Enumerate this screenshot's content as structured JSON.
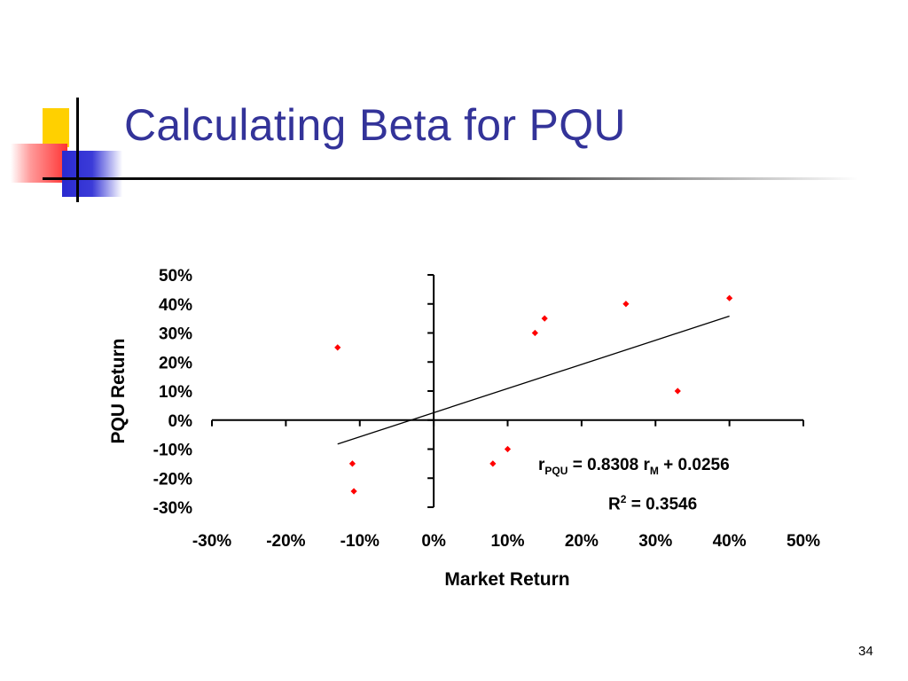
{
  "slide": {
    "title": "Calculating Beta for PQU",
    "page_number": "34"
  },
  "colors": {
    "title": "#333399",
    "points": "#ff0000",
    "deco_yellow": "#ffd000",
    "deco_red": "#ff3333",
    "deco_blue": "#2a2ad0"
  },
  "chart_data": {
    "type": "scatter",
    "xlabel": "Market Return",
    "ylabel": "PQU Return",
    "xlim": [
      -0.3,
      0.5
    ],
    "ylim": [
      -0.3,
      0.5
    ],
    "x_ticks": [
      -0.3,
      -0.2,
      -0.1,
      0,
      0.1,
      0.2,
      0.3,
      0.4,
      0.5
    ],
    "y_ticks": [
      0.5,
      0.4,
      0.3,
      0.2,
      0.1,
      0,
      -0.1,
      -0.2,
      -0.3
    ],
    "x_tick_labels": [
      "-30%",
      "-20%",
      "-10%",
      "0%",
      "10%",
      "20%",
      "30%",
      "40%",
      "50%"
    ],
    "y_tick_labels": [
      "50%",
      "40%",
      "30%",
      "20%",
      "10%",
      "0%",
      "-10%",
      "-20%",
      "-30%"
    ],
    "points": [
      {
        "x": -0.13,
        "y": 0.25
      },
      {
        "x": -0.11,
        "y": -0.15
      },
      {
        "x": -0.108,
        "y": -0.245
      },
      {
        "x": 0.08,
        "y": -0.15
      },
      {
        "x": 0.1,
        "y": -0.1
      },
      {
        "x": 0.137,
        "y": 0.3
      },
      {
        "x": 0.15,
        "y": 0.35
      },
      {
        "x": 0.26,
        "y": 0.4
      },
      {
        "x": 0.33,
        "y": 0.1
      },
      {
        "x": 0.4,
        "y": 0.42
      }
    ],
    "trendline": {
      "slope": 0.8308,
      "intercept": 0.0256,
      "x_range": [
        -0.13,
        0.4
      ]
    },
    "annotations": {
      "eq_r": "r",
      "eq_sub1": "PQU",
      "eq_mid": " = 0.8308 r",
      "eq_sub2": "M",
      "eq_end": " + 0.0256",
      "r2_base": "R",
      "r2_sup": "2",
      "r2_value": " = 0.3546"
    },
    "grid": false,
    "legend": "none",
    "point_marker": "diamond"
  }
}
